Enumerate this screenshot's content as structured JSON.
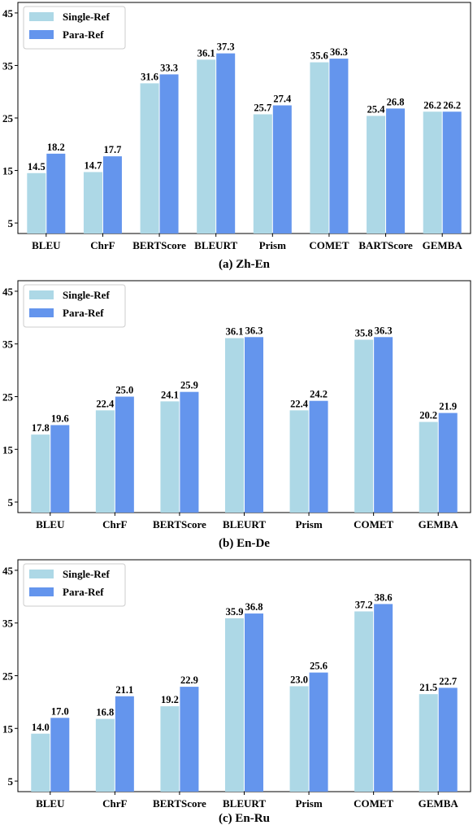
{
  "colors": {
    "single_ref": "#ADD8E6",
    "para_ref": "#6495ED"
  },
  "legend": {
    "single_ref": "Single-Ref",
    "para_ref": "Para-Ref"
  },
  "chart_data": [
    {
      "type": "bar",
      "caption": "(a) Zh-En",
      "categories": [
        "BLEU",
        "ChrF",
        "BERTScore",
        "BLEURT",
        "Prism",
        "COMET",
        "BARTScore",
        "GEMBA"
      ],
      "series": [
        {
          "name": "Single-Ref",
          "values": [
            14.5,
            14.7,
            31.6,
            36.1,
            25.7,
            35.6,
            25.4,
            26.2
          ]
        },
        {
          "name": "Para-Ref",
          "values": [
            18.2,
            17.7,
            33.3,
            37.3,
            27.4,
            36.3,
            26.8,
            26.2
          ]
        }
      ],
      "value_labels": [
        [
          "14.5",
          "14.7",
          "31.6",
          "36.1",
          "25.7",
          "35.6",
          "25.4",
          "26.2"
        ],
        [
          "18.2",
          "17.7",
          "33.3",
          "37.3",
          "27.4",
          "36.3",
          "26.8",
          "26.2"
        ]
      ],
      "yticks": [
        5,
        15,
        25,
        35,
        45
      ],
      "ylim": [
        3,
        47
      ],
      "legend_position": "top-left"
    },
    {
      "type": "bar",
      "caption": "(b) En-De",
      "categories": [
        "BLEU",
        "ChrF",
        "BERTScore",
        "BLEURT",
        "Prism",
        "COMET",
        "GEMBA"
      ],
      "series": [
        {
          "name": "Single-Ref",
          "values": [
            17.8,
            22.4,
            24.1,
            36.1,
            22.4,
            35.8,
            20.2
          ]
        },
        {
          "name": "Para-Ref",
          "values": [
            19.6,
            25.0,
            25.9,
            36.3,
            24.2,
            36.3,
            21.9
          ]
        }
      ],
      "value_labels": [
        [
          "17.8",
          "22.4",
          "24.1",
          "36.1",
          "22.4",
          "35.8",
          "20.2"
        ],
        [
          "19.6",
          "25.0",
          "25.9",
          "36.3",
          "24.2",
          "36.3",
          "21.9"
        ]
      ],
      "yticks": [
        5,
        15,
        25,
        35,
        45
      ],
      "ylim": [
        3,
        47
      ],
      "legend_position": "top-left"
    },
    {
      "type": "bar",
      "caption": "(c) En-Ru",
      "categories": [
        "BLEU",
        "ChrF",
        "BERTScore",
        "BLEURT",
        "Prism",
        "COMET",
        "GEMBA"
      ],
      "series": [
        {
          "name": "Single-Ref",
          "values": [
            14.0,
            16.8,
            19.2,
            35.9,
            23.0,
            37.2,
            21.5
          ]
        },
        {
          "name": "Para-Ref",
          "values": [
            17.0,
            21.1,
            22.9,
            36.8,
            25.6,
            38.6,
            22.7
          ]
        }
      ],
      "value_labels": [
        [
          "14.0",
          "16.8",
          "19.2",
          "35.9",
          "23.0",
          "37.2",
          "21.5"
        ],
        [
          "17.0",
          "21.1",
          "22.9",
          "36.8",
          "25.6",
          "38.6",
          "22.7"
        ]
      ],
      "yticks": [
        5,
        15,
        25,
        35,
        45
      ],
      "ylim": [
        3,
        47
      ],
      "legend_position": "top-left"
    }
  ]
}
